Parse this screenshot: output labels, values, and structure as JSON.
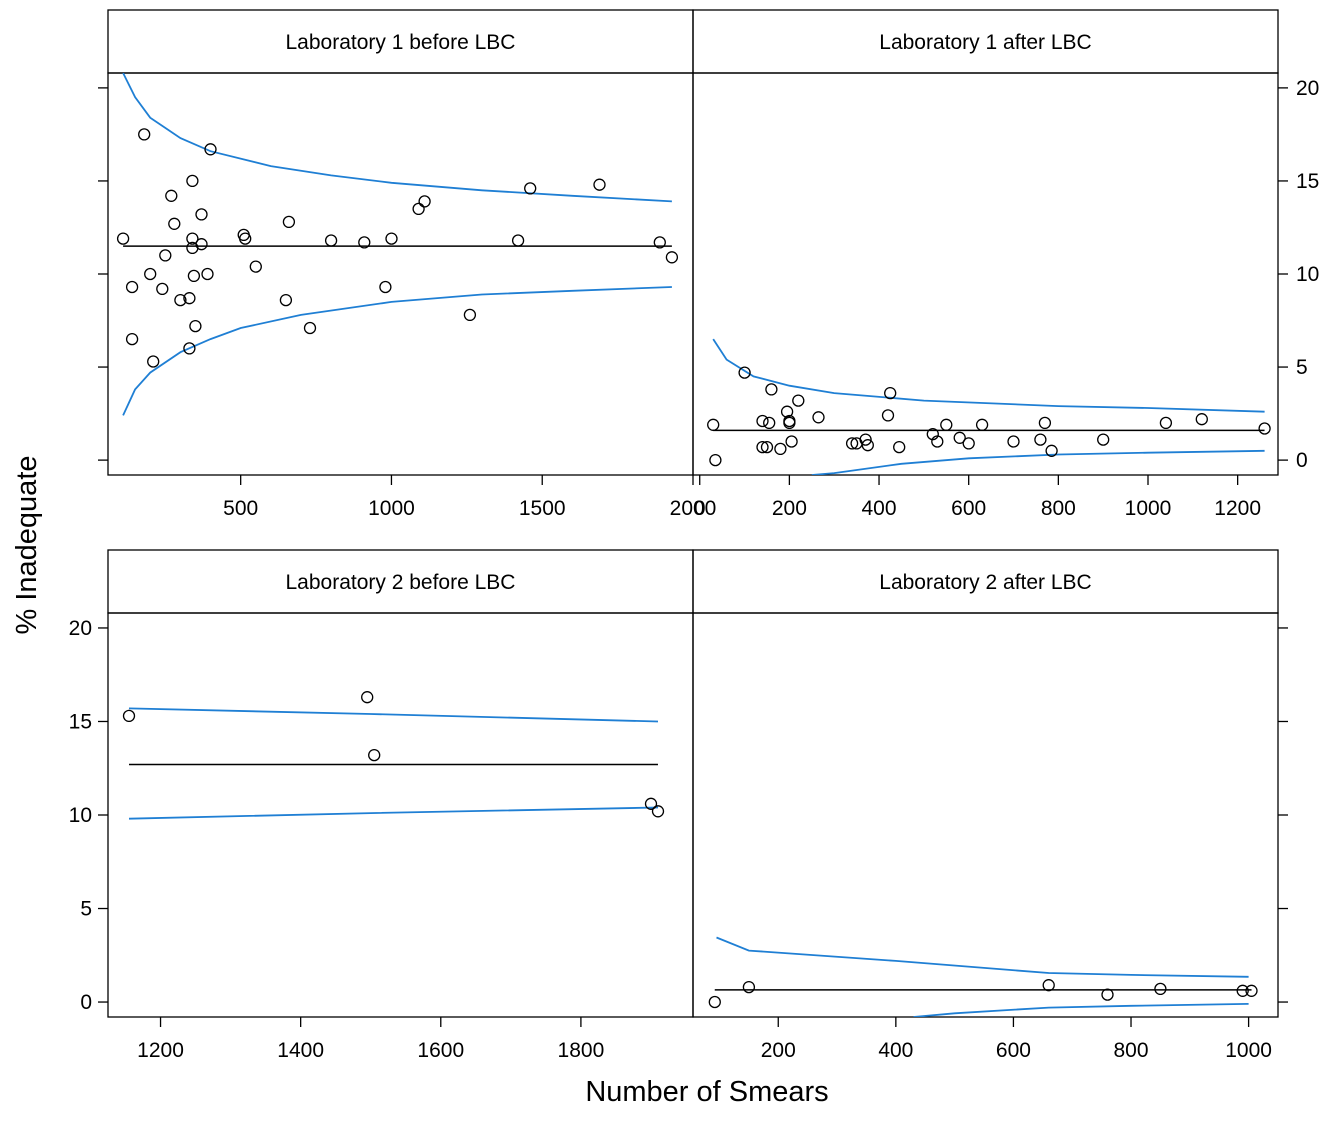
{
  "chart_data": {
    "type": "scatter",
    "xlabel": "Number of Smears",
    "ylabel": "% Inadequate",
    "colors": {
      "limits": "#1f7fd4",
      "points": "#000000",
      "center": "#000000"
    },
    "panels": [
      {
        "id": "lab1-before",
        "strip": "Laboratory 1 before LBC",
        "xlim": [
          60,
          2000
        ],
        "ylim": [
          -0.8,
          20.8
        ],
        "xticks": [
          500,
          1000,
          1500,
          2000
        ],
        "yticks": [
          0,
          5,
          10,
          15,
          20
        ],
        "center": 11.5,
        "upper": [
          [
            110,
            20.8
          ],
          [
            150,
            19.5
          ],
          [
            200,
            18.4
          ],
          [
            300,
            17.3
          ],
          [
            400,
            16.6
          ],
          [
            600,
            15.8
          ],
          [
            800,
            15.3
          ],
          [
            1000,
            14.9
          ],
          [
            1300,
            14.5
          ],
          [
            1600,
            14.2
          ],
          [
            1930,
            13.9
          ]
        ],
        "lower": [
          [
            110,
            2.4
          ],
          [
            150,
            3.8
          ],
          [
            200,
            4.7
          ],
          [
            300,
            5.8
          ],
          [
            400,
            6.5
          ],
          [
            500,
            7.1
          ],
          [
            700,
            7.8
          ],
          [
            1000,
            8.5
          ],
          [
            1300,
            8.9
          ],
          [
            1600,
            9.1
          ],
          [
            1930,
            9.3
          ]
        ],
        "points": [
          [
            110,
            11.9
          ],
          [
            140,
            9.3
          ],
          [
            140,
            6.5
          ],
          [
            180,
            17.5
          ],
          [
            200,
            10.0
          ],
          [
            210,
            5.3
          ],
          [
            240,
            9.2
          ],
          [
            250,
            11.0
          ],
          [
            270,
            14.2
          ],
          [
            280,
            12.7
          ],
          [
            300,
            8.6
          ],
          [
            330,
            8.7
          ],
          [
            330,
            6.0
          ],
          [
            340,
            15.0
          ],
          [
            340,
            11.9
          ],
          [
            340,
            11.4
          ],
          [
            345,
            9.9
          ],
          [
            350,
            7.2
          ],
          [
            370,
            13.2
          ],
          [
            370,
            11.6
          ],
          [
            390,
            10.0
          ],
          [
            400,
            16.7
          ],
          [
            510,
            12.1
          ],
          [
            515,
            11.9
          ],
          [
            550,
            10.4
          ],
          [
            650,
            8.6
          ],
          [
            660,
            12.8
          ],
          [
            730,
            7.1
          ],
          [
            800,
            11.8
          ],
          [
            910,
            11.7
          ],
          [
            980,
            9.3
          ],
          [
            1000,
            11.9
          ],
          [
            1090,
            13.5
          ],
          [
            1110,
            13.9
          ],
          [
            1260,
            7.8
          ],
          [
            1420,
            11.8
          ],
          [
            1460,
            14.6
          ],
          [
            1690,
            14.8
          ],
          [
            1890,
            11.7
          ],
          [
            1930,
            10.9
          ]
        ],
        "show_x_axis": "bottom",
        "show_y_axis": "none"
      },
      {
        "id": "lab1-after",
        "strip": "Laboratory 1 after LBC",
        "xlim": [
          -15,
          1290
        ],
        "ylim": [
          -0.8,
          20.8
        ],
        "xticks": [
          0,
          200,
          400,
          600,
          800,
          1000,
          1200
        ],
        "yticks": [
          0,
          5,
          10,
          15,
          20
        ],
        "center": 1.6,
        "upper": [
          [
            30,
            6.5
          ],
          [
            60,
            5.4
          ],
          [
            120,
            4.5
          ],
          [
            200,
            4.0
          ],
          [
            300,
            3.6
          ],
          [
            500,
            3.2
          ],
          [
            800,
            2.9
          ],
          [
            1000,
            2.8
          ],
          [
            1260,
            2.6
          ]
        ],
        "lower": [
          [
            250,
            -0.8
          ],
          [
            300,
            -0.7
          ],
          [
            450,
            -0.2
          ],
          [
            600,
            0.1
          ],
          [
            800,
            0.3
          ],
          [
            1000,
            0.4
          ],
          [
            1260,
            0.5
          ]
        ],
        "points": [
          [
            30,
            1.9
          ],
          [
            35,
            0.0
          ],
          [
            100,
            4.7
          ],
          [
            140,
            2.1
          ],
          [
            140,
            0.7
          ],
          [
            150,
            0.7
          ],
          [
            155,
            2.0
          ],
          [
            160,
            3.8
          ],
          [
            180,
            0.6
          ],
          [
            195,
            2.6
          ],
          [
            200,
            2.0
          ],
          [
            200,
            2.1
          ],
          [
            205,
            1.0
          ],
          [
            220,
            3.2
          ],
          [
            265,
            2.3
          ],
          [
            340,
            0.9
          ],
          [
            350,
            0.9
          ],
          [
            370,
            1.1
          ],
          [
            375,
            0.8
          ],
          [
            420,
            2.4
          ],
          [
            425,
            3.6
          ],
          [
            445,
            0.7
          ],
          [
            520,
            1.4
          ],
          [
            530,
            1.0
          ],
          [
            550,
            1.9
          ],
          [
            580,
            1.2
          ],
          [
            600,
            0.9
          ],
          [
            630,
            1.9
          ],
          [
            700,
            1.0
          ],
          [
            760,
            1.1
          ],
          [
            770,
            2.0
          ],
          [
            785,
            0.5
          ],
          [
            900,
            1.1
          ],
          [
            1040,
            2.0
          ],
          [
            1120,
            2.2
          ],
          [
            1260,
            1.7
          ]
        ],
        "show_x_axis": "bottom",
        "show_y_axis": "right"
      },
      {
        "id": "lab2-before",
        "strip": "Laboratory 2 before LBC",
        "xlim": [
          1125,
          1960
        ],
        "ylim": [
          -0.8,
          20.8
        ],
        "xticks": [
          1200,
          1400,
          1600,
          1800
        ],
        "yticks": [
          0,
          5,
          10,
          15,
          20
        ],
        "center": 12.7,
        "upper": [
          [
            1155,
            15.7
          ],
          [
            1500,
            15.4
          ],
          [
            1910,
            15.0
          ]
        ],
        "lower": [
          [
            1155,
            9.8
          ],
          [
            1500,
            10.1
          ],
          [
            1910,
            10.4
          ]
        ],
        "points": [
          [
            1155,
            15.3
          ],
          [
            1495,
            16.3
          ],
          [
            1505,
            13.2
          ],
          [
            1900,
            10.6
          ],
          [
            1910,
            10.2
          ]
        ],
        "show_x_axis": "bottom",
        "show_y_axis": "left"
      },
      {
        "id": "lab2-after",
        "strip": "Laboratory 2 after LBC",
        "xlim": [
          55,
          1050
        ],
        "ylim": [
          -0.8,
          20.8
        ],
        "xticks": [
          200,
          400,
          600,
          800,
          1000
        ],
        "yticks": [
          0,
          5,
          10,
          15,
          20
        ],
        "center": 0.65,
        "upper": [
          [
            95,
            3.45
          ],
          [
            150,
            2.75
          ],
          [
            400,
            2.2
          ],
          [
            660,
            1.55
          ],
          [
            800,
            1.45
          ],
          [
            1000,
            1.35
          ]
        ],
        "lower": [
          [
            430,
            -0.8
          ],
          [
            500,
            -0.6
          ],
          [
            660,
            -0.3
          ],
          [
            800,
            -0.2
          ],
          [
            1000,
            -0.1
          ]
        ],
        "points": [
          [
            92,
            0.0
          ],
          [
            150,
            0.8
          ],
          [
            660,
            0.9
          ],
          [
            760,
            0.4
          ],
          [
            850,
            0.7
          ],
          [
            990,
            0.6
          ],
          [
            1005,
            0.6
          ]
        ],
        "show_x_axis": "bottom",
        "show_y_axis": "right"
      }
    ]
  }
}
